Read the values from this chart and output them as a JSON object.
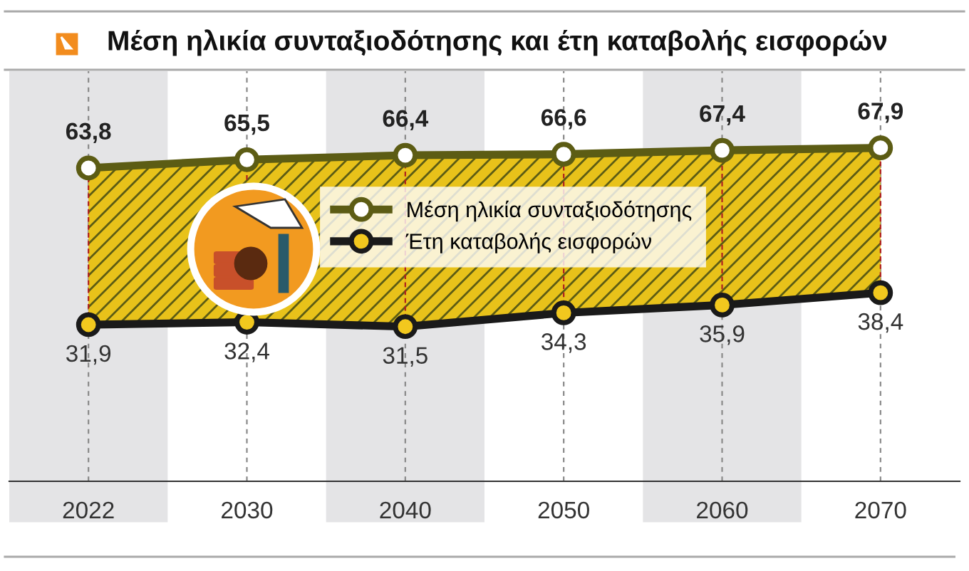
{
  "chart_data": {
    "type": "line",
    "title": "Μέση ηλικία συνταξιοδότησης και έτη καταβολής εισφορών",
    "categories": [
      "2022",
      "2030",
      "2040",
      "2050",
      "2060",
      "2070"
    ],
    "series": [
      {
        "name": "Μέση ηλικία συνταξιοδότησης",
        "color": "#5c5c14",
        "values": [
          63.8,
          65.5,
          66.4,
          66.6,
          67.4,
          67.9
        ],
        "value_labels": [
          "63,8",
          "65,5",
          "66,4",
          "66,6",
          "67,4",
          "67,9"
        ]
      },
      {
        "name": "Έτη καταβολής εισφορών",
        "color": "#1a1a1a",
        "values": [
          31.9,
          32.4,
          31.5,
          34.3,
          35.9,
          38.4
        ],
        "value_labels": [
          "31,9",
          "32,4",
          "31,5",
          "34,3",
          "35,9",
          "38,4"
        ]
      }
    ],
    "tick_labels": "x",
    "marker": "circle",
    "line_style": "solid",
    "grid": "x",
    "legend": "center",
    "bands": [
      {
        "axis": "x",
        "from": "2022",
        "to": "2022",
        "color": "#e4e4e6"
      },
      {
        "axis": "x",
        "from": "2040",
        "to": "2040",
        "color": "#e4e4e6"
      },
      {
        "axis": "x",
        "from": "2060",
        "to": "2060",
        "color": "#e4e4e6"
      }
    ]
  }
}
